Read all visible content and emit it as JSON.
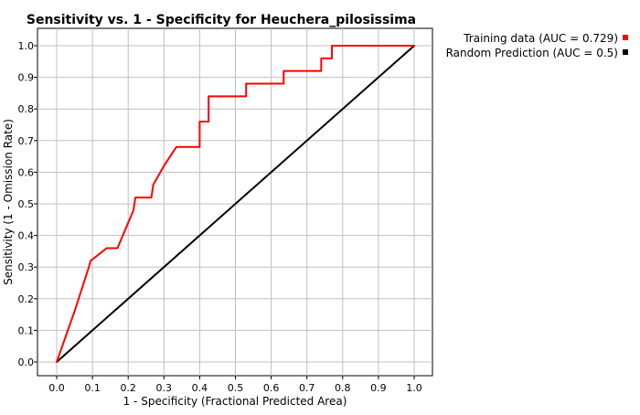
{
  "chart_data": {
    "type": "line",
    "title": "Sensitivity vs. 1 - Specificity for Heuchera_pilosissima",
    "xlabel": "1 - Specificity  (Fractional Predicted Area)",
    "ylabel": "Sensitivity  (1 - Omission Rate)",
    "xlim": [
      0.0,
      1.0
    ],
    "ylim": [
      0.0,
      1.0
    ],
    "x_ticks": [
      "0.0",
      "0.1",
      "0.2",
      "0.3",
      "0.4",
      "0.5",
      "0.6",
      "0.7",
      "0.8",
      "0.9",
      "1.0"
    ],
    "y_ticks": [
      "0.0",
      "0.1",
      "0.2",
      "0.3",
      "0.4",
      "0.5",
      "0.6",
      "0.7",
      "0.8",
      "0.9",
      "1.0"
    ],
    "grid": true,
    "legend_position": "top-right",
    "series": [
      {
        "name": "Training data (AUC = 0.729)",
        "color": "#ff0000",
        "x": [
          0.0,
          0.05,
          0.09,
          0.095,
          0.14,
          0.17,
          0.215,
          0.22,
          0.265,
          0.27,
          0.3,
          0.335,
          0.4,
          0.4,
          0.425,
          0.425,
          0.53,
          0.53,
          0.635,
          0.635,
          0.74,
          0.74,
          0.77,
          0.77,
          1.0
        ],
        "y": [
          0.0,
          0.16,
          0.3,
          0.32,
          0.36,
          0.36,
          0.48,
          0.52,
          0.52,
          0.56,
          0.62,
          0.68,
          0.68,
          0.76,
          0.76,
          0.84,
          0.84,
          0.88,
          0.88,
          0.92,
          0.92,
          0.96,
          0.96,
          1.0,
          1.0
        ]
      },
      {
        "name": "Random Prediction (AUC = 0.5)",
        "color": "#000000",
        "x": [
          0.0,
          1.0
        ],
        "y": [
          0.0,
          1.0
        ]
      }
    ]
  }
}
